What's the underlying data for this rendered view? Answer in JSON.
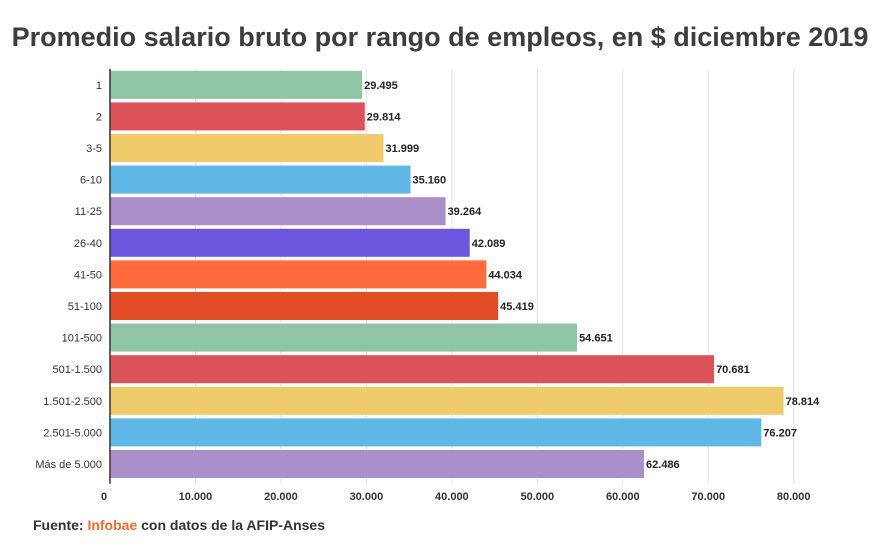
{
  "chart_data": {
    "type": "bar",
    "orientation": "horizontal",
    "title": "Promedio salario bruto por rango de empleos, en $ diciembre 2019",
    "xlabel": "",
    "ylabel": "",
    "categories": [
      "1",
      "2",
      "3-5",
      "6-10",
      "11-25",
      "26-40",
      "41-50",
      "51-100",
      "101-500",
      "501-1.500",
      "1.501-2.500",
      "2.501-5.000",
      "Más de 5.000"
    ],
    "values": [
      29495,
      29814,
      31999,
      35160,
      39264,
      42089,
      44034,
      45419,
      54651,
      70681,
      78814,
      76207,
      62486
    ],
    "value_labels": [
      "29.495",
      "29.814",
      "31.999",
      "35.160",
      "39.264",
      "42.089",
      "44.034",
      "45.419",
      "54.651",
      "70.681",
      "78.814",
      "76.207",
      "62.486"
    ],
    "colors": [
      "#8fc4a4",
      "#dc5259",
      "#f0cb6c",
      "#5fb8e5",
      "#ab8fcb",
      "#6d55dd",
      "#ff6b3c",
      "#e24c26",
      "#8fc4a4",
      "#dc5259",
      "#f0cb6c",
      "#5fb8e5",
      "#ab8fcb"
    ],
    "xlim": [
      0,
      86000
    ],
    "xticks": [
      0,
      10000,
      20000,
      30000,
      40000,
      50000,
      60000,
      70000,
      80000
    ],
    "xtick_labels": [
      "0",
      "10.000",
      "20.000",
      "30.000",
      "40.000",
      "50.000",
      "60.000",
      "70.000",
      "80.000"
    ],
    "grid": true,
    "legend": "none"
  },
  "footer": {
    "prefix": "Fuente:",
    "brand": "Infobae",
    "suffix": "con datos de la AFIP-Anses",
    "brand_color": "#f26a2e"
  }
}
